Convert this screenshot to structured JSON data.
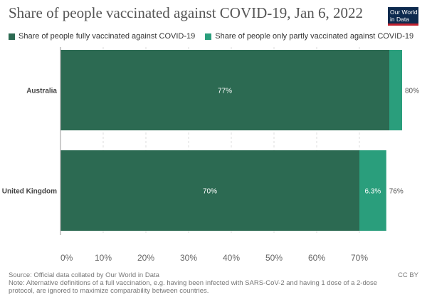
{
  "header": {
    "title": "Share of people vaccinated against COVID-19, Jan 6, 2022",
    "logo_line1": "Our World",
    "logo_line2": "in Data"
  },
  "legend": [
    {
      "label": "Share of people fully vaccinated against COVID-19",
      "color": "#2c6a52"
    },
    {
      "label": "Share of people only partly vaccinated against COVID-19",
      "color": "#2a9e7c"
    }
  ],
  "chart_data": {
    "type": "bar",
    "orientation": "horizontal",
    "stacked": true,
    "categories": [
      "Australia",
      "United Kingdom"
    ],
    "series": [
      {
        "name": "Share of people fully vaccinated against COVID-19",
        "values": [
          77,
          70
        ],
        "labels": [
          "77%",
          "70%"
        ],
        "color": "#2c6a52"
      },
      {
        "name": "Share of people only partly vaccinated against COVID-19",
        "values": [
          3,
          6.3
        ],
        "labels": [
          "",
          "6.3%"
        ],
        "color": "#2a9e7c"
      }
    ],
    "totals": [
      "80%",
      "76%"
    ],
    "xticks": [
      "0%",
      "10%",
      "20%",
      "30%",
      "40%",
      "50%",
      "60%",
      "70%"
    ],
    "xlim": [
      0,
      80
    ],
    "grid": true,
    "legend_position": "top"
  },
  "footer": {
    "source": "Source: Official data collated by Our World in Data",
    "note": "Note: Alternative definitions of a full vaccination, e.g. having been infected with SARS-CoV-2 and having 1 dose of a 2-dose protocol, are ignored to maximize comparability between countries.",
    "license": "CC BY"
  }
}
